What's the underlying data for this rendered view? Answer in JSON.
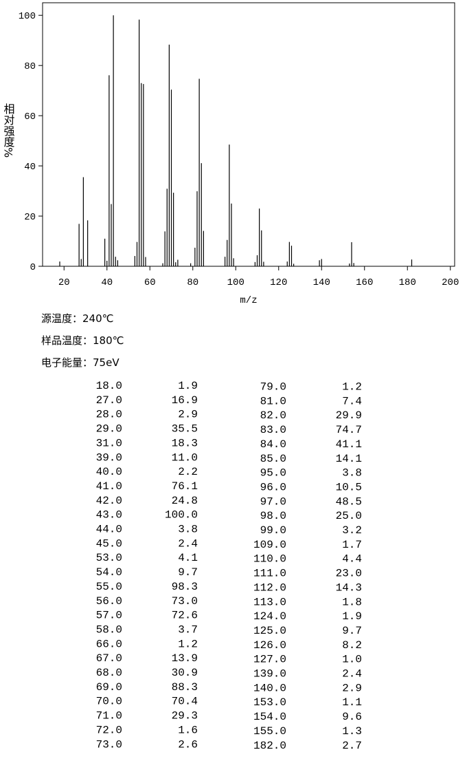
{
  "chart_data": {
    "type": "bar",
    "x_label": "m/z",
    "y_label": "相对强度%",
    "x": [
      18,
      27,
      28,
      29,
      31,
      39,
      40,
      41,
      42,
      43,
      44,
      45,
      53,
      54,
      55,
      56,
      57,
      58,
      66,
      67,
      68,
      69,
      70,
      71,
      72,
      73,
      79,
      81,
      82,
      83,
      84,
      85,
      95,
      96,
      97,
      98,
      99,
      109,
      110,
      111,
      112,
      113,
      124,
      125,
      126,
      127,
      139,
      140,
      153,
      154,
      155,
      182
    ],
    "values": [
      1.9,
      16.9,
      2.9,
      35.5,
      18.3,
      11.0,
      2.2,
      76.1,
      24.8,
      100.0,
      3.8,
      2.4,
      4.1,
      9.7,
      98.3,
      73.0,
      72.6,
      3.7,
      1.2,
      13.9,
      30.9,
      88.3,
      70.4,
      29.3,
      1.6,
      2.6,
      1.2,
      7.4,
      29.9,
      74.7,
      41.1,
      14.1,
      3.8,
      10.5,
      48.5,
      25.0,
      3.2,
      1.7,
      4.4,
      23.0,
      14.3,
      1.8,
      1.9,
      9.7,
      8.2,
      1.0,
      2.4,
      2.9,
      1.1,
      9.6,
      1.3,
      2.7
    ],
    "color": "#000000",
    "xlim": [
      10,
      202
    ],
    "ylim": [
      0,
      105
    ],
    "xticks": [
      20,
      40,
      60,
      80,
      100,
      120,
      140,
      160,
      180,
      200
    ],
    "yticks": [
      0,
      20,
      40,
      60,
      80,
      100
    ]
  },
  "conditions": [
    "源温度：240℃",
    "样品温度：180℃",
    "电子能量：75eV"
  ],
  "peak_table": {
    "rows": [
      [
        "18.0",
        "1.9"
      ],
      [
        "27.0",
        "16.9"
      ],
      [
        "28.0",
        "2.9"
      ],
      [
        "29.0",
        "35.5"
      ],
      [
        "31.0",
        "18.3"
      ],
      [
        "39.0",
        "11.0"
      ],
      [
        "40.0",
        "2.2"
      ],
      [
        "41.0",
        "76.1"
      ],
      [
        "42.0",
        "24.8"
      ],
      [
        "43.0",
        "100.0"
      ],
      [
        "44.0",
        "3.8"
      ],
      [
        "45.0",
        "2.4"
      ],
      [
        "53.0",
        "4.1"
      ],
      [
        "54.0",
        "9.7"
      ],
      [
        "55.0",
        "98.3"
      ],
      [
        "56.0",
        "73.0"
      ],
      [
        "57.0",
        "72.6"
      ],
      [
        "58.0",
        "3.7"
      ],
      [
        "66.0",
        "1.2"
      ],
      [
        "67.0",
        "13.9"
      ],
      [
        "68.0",
        "30.9"
      ],
      [
        "69.0",
        "88.3"
      ],
      [
        "70.0",
        "70.4"
      ],
      [
        "71.0",
        "29.3"
      ],
      [
        "72.0",
        "1.6"
      ],
      [
        "73.0",
        "2.6"
      ],
      [
        "79.0",
        "1.2"
      ],
      [
        "81.0",
        "7.4"
      ],
      [
        "82.0",
        "29.9"
      ],
      [
        "83.0",
        "74.7"
      ],
      [
        "84.0",
        "41.1"
      ],
      [
        "85.0",
        "14.1"
      ],
      [
        "95.0",
        "3.8"
      ],
      [
        "96.0",
        "10.5"
      ],
      [
        "97.0",
        "48.5"
      ],
      [
        "98.0",
        "25.0"
      ],
      [
        "99.0",
        "3.2"
      ],
      [
        "109.0",
        "1.7"
      ],
      [
        "110.0",
        "4.4"
      ],
      [
        "111.0",
        "23.0"
      ],
      [
        "112.0",
        "14.3"
      ],
      [
        "113.0",
        "1.8"
      ],
      [
        "124.0",
        "1.9"
      ],
      [
        "125.0",
        "9.7"
      ],
      [
        "126.0",
        "8.2"
      ],
      [
        "127.0",
        "1.0"
      ],
      [
        "139.0",
        "2.4"
      ],
      [
        "140.0",
        "2.9"
      ],
      [
        "153.0",
        "1.1"
      ],
      [
        "154.0",
        "9.6"
      ],
      [
        "155.0",
        "1.3"
      ],
      [
        "182.0",
        "2.7"
      ]
    ]
  }
}
